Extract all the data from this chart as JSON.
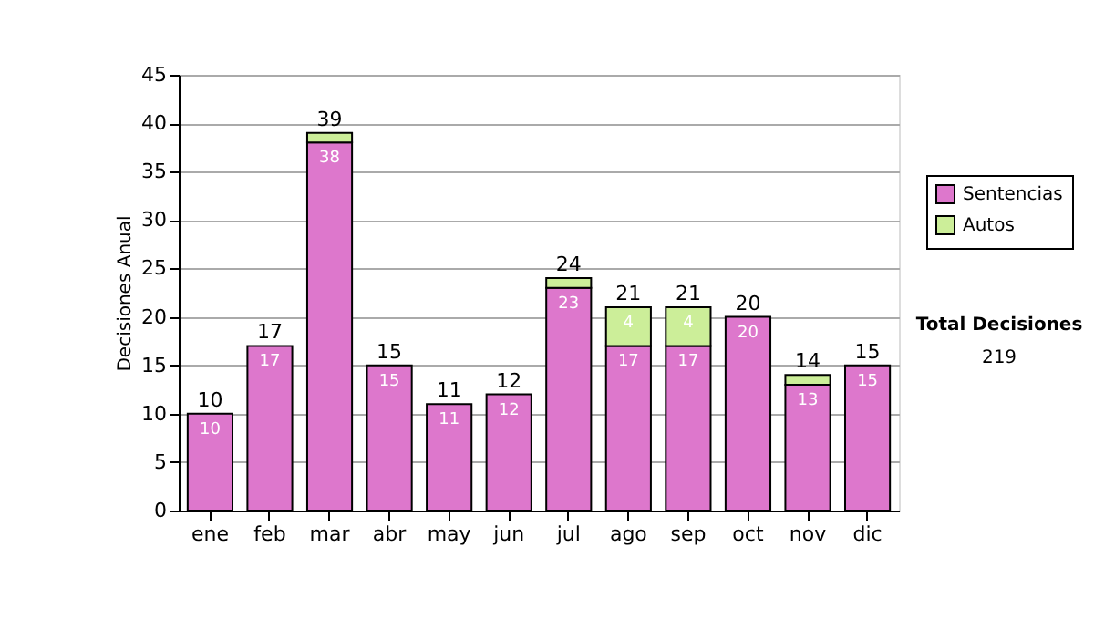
{
  "chart_data": {
    "type": "bar",
    "stacked": true,
    "ylabel": "Decisiones Anual",
    "categories": [
      "ene",
      "feb",
      "mar",
      "abr",
      "may",
      "jun",
      "jul",
      "ago",
      "sep",
      "oct",
      "nov",
      "dic"
    ],
    "series": [
      {
        "name": "Sentencias",
        "color": "#dd77cc",
        "values": [
          10,
          17,
          38,
          15,
          11,
          12,
          23,
          17,
          17,
          20,
          13,
          15
        ],
        "value_labels": [
          "10",
          "17",
          "38",
          "15",
          "11",
          "12",
          "23",
          "17",
          "17",
          "20",
          "13",
          "15"
        ]
      },
      {
        "name": "Autos",
        "color": "#ccee99",
        "values": [
          null,
          null,
          1,
          null,
          null,
          null,
          1,
          4,
          4,
          null,
          1,
          null
        ],
        "value_labels": [
          null,
          null,
          null,
          null,
          null,
          null,
          null,
          "4",
          "4",
          null,
          null,
          null
        ]
      }
    ],
    "totals": [
      "10",
      "17",
      "39",
      "15",
      "11",
      "12",
      "24",
      "21",
      "21",
      "20",
      "14",
      "15"
    ],
    "ylim": [
      0,
      45
    ],
    "yticks": [
      0,
      5,
      10,
      15,
      20,
      25,
      30,
      35,
      40,
      45
    ],
    "grid": "y",
    "legend": "right",
    "annotations": [
      "Total Decisiones",
      "219"
    ]
  }
}
